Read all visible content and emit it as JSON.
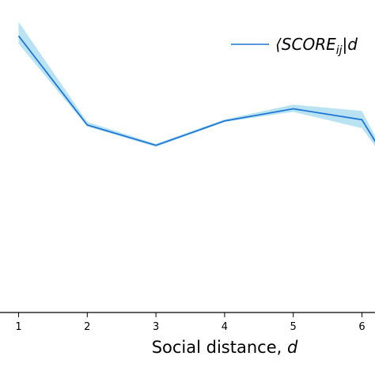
{
  "chart_data": {
    "type": "line",
    "xlabel": "Social distance, ",
    "xlabel_var": "d",
    "x": [
      1,
      2,
      3,
      4,
      5,
      6,
      6.2
    ],
    "xticks": [
      "1",
      "2",
      "3",
      "4",
      "5",
      "6"
    ],
    "xlim": [
      0.75,
      6.2
    ],
    "ylim": [
      0,
      1
    ],
    "series": [
      {
        "name": "⟨SCORE",
        "name_sub": "ij",
        "name_tail": "|d",
        "values": [
          0.885,
          0.6,
          0.535,
          0.613,
          0.652,
          0.617,
          0.545
        ],
        "lower": [
          0.86,
          0.595,
          0.53,
          0.61,
          0.642,
          0.59,
          0.53
        ],
        "upper": [
          0.93,
          0.61,
          0.54,
          0.618,
          0.665,
          0.645,
          0.56
        ],
        "line_color": "#1f77d4",
        "band_color": "#a8dcef"
      }
    ],
    "grid": false,
    "legend": "top-right"
  }
}
